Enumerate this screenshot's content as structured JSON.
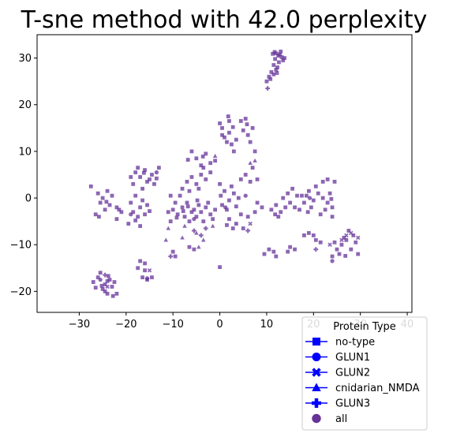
{
  "chart_data": {
    "type": "scatter",
    "title": "T-sne method with 42.0 perplexity",
    "xlabel": "",
    "ylabel": "",
    "xlim": [
      -39,
      41
    ],
    "ylim": [
      -24.5,
      35
    ],
    "xticks": [
      -30,
      -20,
      -10,
      0,
      10,
      20,
      30,
      40
    ],
    "yticks": [
      -20,
      -10,
      0,
      10,
      20,
      30
    ],
    "xtick_labels": [
      "−30",
      "−20",
      "−10",
      "0",
      "10",
      "20",
      "30",
      "40"
    ],
    "ytick_labels": [
      "−20",
      "−10",
      "0",
      "10",
      "20",
      "30"
    ],
    "grid": false,
    "point_color": "#663399",
    "legend_marker_color": "#0000ff",
    "legend": {
      "title": "Protein Type",
      "placement": "lower-right",
      "entries": [
        {
          "label": "no-type",
          "marker": "square"
        },
        {
          "label": "GLUN1",
          "marker": "circle"
        },
        {
          "label": "GLUN2",
          "marker": "x"
        },
        {
          "label": "cnidarian_NMDA",
          "marker": "triangle"
        },
        {
          "label": "GLUN3",
          "marker": "plus"
        },
        {
          "label": "all",
          "marker": "circle-filled"
        }
      ]
    },
    "series": [
      {
        "name": "no-type",
        "marker": "square",
        "points": [
          [
            12.0,
            31.0
          ],
          [
            12.5,
            30.5
          ],
          [
            11.8,
            29.8
          ],
          [
            12.8,
            30.8
          ],
          [
            13.2,
            30.2
          ],
          [
            11.5,
            28.5
          ],
          [
            12.3,
            28.0
          ],
          [
            13.5,
            29.5
          ],
          [
            11.0,
            27.0
          ],
          [
            12.0,
            27.5
          ],
          [
            10.5,
            26.0
          ],
          [
            11.5,
            26.5
          ],
          [
            10.0,
            25.0
          ],
          [
            13.0,
            31.4
          ],
          [
            11.3,
            30.9
          ],
          [
            12.6,
            29.1
          ],
          [
            11.7,
            31.3
          ],
          [
            13.8,
            30.0
          ],
          [
            10.8,
            25.5
          ],
          [
            12.2,
            26.8
          ],
          [
            -23.5,
            -17.5
          ],
          [
            -24.5,
            -18.5
          ],
          [
            -25.0,
            -19.5
          ],
          [
            -22.5,
            -18.0
          ],
          [
            -24.0,
            -20.5
          ],
          [
            -26.0,
            -17.0
          ],
          [
            -23.0,
            -19.0
          ],
          [
            -25.5,
            -16.0
          ],
          [
            -27.0,
            -18.0
          ],
          [
            -24.5,
            -20.0
          ],
          [
            -22.0,
            -20.5
          ],
          [
            -25.2,
            -18.8
          ],
          [
            -23.8,
            -16.7
          ],
          [
            -26.5,
            -19.2
          ],
          [
            -22.8,
            -21.0
          ],
          [
            -24.0,
            -17.8
          ],
          [
            -18.0,
            5.5
          ],
          [
            -17.0,
            4.5
          ],
          [
            -16.0,
            6.0
          ],
          [
            -15.5,
            3.5
          ],
          [
            -14.5,
            5.0
          ],
          [
            -13.0,
            6.5
          ],
          [
            -18.5,
            3.0
          ],
          [
            -16.5,
            2.0
          ],
          [
            -15.0,
            4.0
          ],
          [
            -17.5,
            6.5
          ],
          [
            -19.0,
            4.5
          ],
          [
            -14.0,
            3.0
          ],
          [
            -16.2,
            5.4
          ],
          [
            -13.5,
            4.2
          ],
          [
            -26.0,
            1.0
          ],
          [
            -25.0,
            0.0
          ],
          [
            -24.0,
            1.5
          ],
          [
            -23.0,
            0.5
          ],
          [
            -25.5,
            -1.0
          ],
          [
            -24.5,
            -2.5
          ],
          [
            -26.5,
            -3.5
          ],
          [
            -27.5,
            2.5
          ],
          [
            -24.2,
            -0.8
          ],
          [
            -25.8,
            -4.0
          ],
          [
            -23.5,
            -1.5
          ],
          [
            -22.0,
            -2.0
          ],
          [
            -21.0,
            -3.0
          ],
          [
            -22.0,
            -4.5
          ],
          [
            -21.5,
            -2.5
          ],
          [
            -19.0,
            -1.0
          ],
          [
            -18.0,
            0.5
          ],
          [
            -17.0,
            -2.0
          ],
          [
            -18.5,
            -3.0
          ],
          [
            -19.5,
            -5.5
          ],
          [
            -17.5,
            -4.0
          ],
          [
            -16.0,
            -3.5
          ],
          [
            -17.0,
            -6.0
          ],
          [
            -15.5,
            -1.5
          ],
          [
            -18.0,
            -4.8
          ],
          [
            -16.5,
            -0.5
          ],
          [
            -15.0,
            -2.8
          ],
          [
            -17.0,
            -13.5
          ],
          [
            -16.0,
            -14.0
          ],
          [
            -17.5,
            -15.0
          ],
          [
            -16.5,
            -17.0
          ],
          [
            -15.5,
            -17.5
          ],
          [
            -14.5,
            -17.0
          ],
          [
            -16.0,
            -15.5
          ],
          [
            -10.5,
            0.5
          ],
          [
            -9.5,
            -1.0
          ],
          [
            -10.0,
            -2.5
          ],
          [
            -9.0,
            -3.5
          ],
          [
            -11.0,
            -3.0
          ],
          [
            -10.5,
            -5.0
          ],
          [
            -8.0,
            -2.0
          ],
          [
            -7.0,
            -1.0
          ],
          [
            -8.5,
            0.5
          ],
          [
            -6.0,
            -3.0
          ],
          [
            -7.5,
            -4.0
          ],
          [
            -6.5,
            -5.0
          ],
          [
            -5.5,
            -2.5
          ],
          [
            -4.5,
            -1.5
          ],
          [
            -5.0,
            -4.0
          ],
          [
            -4.0,
            -3.0
          ],
          [
            -3.5,
            -5.0
          ],
          [
            -3.0,
            -2.0
          ],
          [
            -2.5,
            -1.0
          ],
          [
            -2.0,
            -3.5
          ],
          [
            -1.5,
            -4.5
          ],
          [
            -1.0,
            -2.5
          ],
          [
            -7.8,
            -2.8
          ],
          [
            -9.2,
            -4.2
          ],
          [
            -4.8,
            -0.5
          ],
          [
            -6.8,
            -1.8
          ],
          [
            -8.0,
            2.0
          ],
          [
            -7.0,
            3.5
          ],
          [
            -6.0,
            4.5
          ],
          [
            -5.0,
            3.0
          ],
          [
            -4.0,
            5.0
          ],
          [
            -3.0,
            4.0
          ],
          [
            -2.0,
            5.5
          ],
          [
            -6.5,
            1.5
          ],
          [
            -4.5,
            2.0
          ],
          [
            -3.5,
            6.5
          ],
          [
            -10.0,
            -11.5
          ],
          [
            -9.5,
            -12.5
          ],
          [
            -5.5,
            -11.0
          ],
          [
            -6.5,
            -10.5
          ],
          [
            0.0,
            -14.8
          ],
          [
            -6.0,
            10.0
          ],
          [
            -5.0,
            8.5
          ],
          [
            -4.0,
            7.0
          ],
          [
            -3.0,
            9.5
          ],
          [
            -2.0,
            7.5
          ],
          [
            -1.0,
            8.0
          ],
          [
            -6.8,
            8.2
          ],
          [
            -3.6,
            8.9
          ],
          [
            0.0,
            16.0
          ],
          [
            0.5,
            15.0
          ],
          [
            1.0,
            13.0
          ],
          [
            1.5,
            12.0
          ],
          [
            2.0,
            14.0
          ],
          [
            2.5,
            11.5
          ],
          [
            3.0,
            10.0
          ],
          [
            2.0,
            16.5
          ],
          [
            0.5,
            13.5
          ],
          [
            1.8,
            17.5
          ],
          [
            3.5,
            12.5
          ],
          [
            2.8,
            15.2
          ],
          [
            4.5,
            16.5
          ],
          [
            5.5,
            17.0
          ],
          [
            5.0,
            14.5
          ],
          [
            6.0,
            13.5
          ],
          [
            7.0,
            15.0
          ],
          [
            6.5,
            12.0
          ],
          [
            7.5,
            10.0
          ],
          [
            5.8,
            15.8
          ],
          [
            0.0,
            3.0
          ],
          [
            1.0,
            1.5
          ],
          [
            2.0,
            -0.5
          ],
          [
            0.5,
            -1.5
          ],
          [
            1.5,
            -2.5
          ],
          [
            3.0,
            1.0
          ],
          [
            4.0,
            0.0
          ],
          [
            2.5,
            2.5
          ],
          [
            0.2,
            0.5
          ],
          [
            3.5,
            -1.8
          ],
          [
            2.0,
            -4.5
          ],
          [
            3.5,
            -5.5
          ],
          [
            5.0,
            -6.5
          ],
          [
            4.5,
            -3.5
          ],
          [
            6.0,
            -4.0
          ],
          [
            2.8,
            -6.5
          ],
          [
            1.5,
            -5.8
          ],
          [
            6.5,
            3.5
          ],
          [
            5.5,
            5.0
          ],
          [
            7.0,
            6.5
          ],
          [
            4.5,
            4.0
          ],
          [
            8.0,
            4.0
          ],
          [
            8.0,
            -1.0
          ],
          [
            9.0,
            -2.0
          ],
          [
            7.5,
            -3.0
          ],
          [
            10.5,
            -11.0
          ],
          [
            11.5,
            -11.5
          ],
          [
            12.0,
            -12.5
          ],
          [
            9.5,
            -12.0
          ],
          [
            11.0,
            -2.5
          ],
          [
            12.0,
            -1.5
          ],
          [
            13.0,
            -3.0
          ],
          [
            14.0,
            -2.0
          ],
          [
            15.0,
            -1.0
          ],
          [
            16.0,
            -2.0
          ],
          [
            13.5,
            0.0
          ],
          [
            15.5,
            2.0
          ],
          [
            14.5,
            1.0
          ],
          [
            12.5,
            -4.0
          ],
          [
            16.5,
            0.5
          ],
          [
            11.8,
            -3.5
          ],
          [
            17.0,
            -2.5
          ],
          [
            18.0,
            -1.0
          ],
          [
            18.5,
            0.5
          ],
          [
            19.0,
            1.5
          ],
          [
            20.0,
            -0.5
          ],
          [
            19.5,
            -2.0
          ],
          [
            21.0,
            1.0
          ],
          [
            17.5,
            0.5
          ],
          [
            20.5,
            2.5
          ],
          [
            18.8,
            -3.0
          ],
          [
            15.0,
            -10.5
          ],
          [
            16.0,
            -11.0
          ],
          [
            14.5,
            -11.5
          ],
          [
            18.0,
            -8.0
          ],
          [
            19.0,
            -7.5
          ],
          [
            20.0,
            -8.0
          ],
          [
            20.5,
            -9.0
          ],
          [
            21.5,
            -9.5
          ],
          [
            22.0,
            0.0
          ],
          [
            23.0,
            -1.0
          ],
          [
            22.5,
            -2.5
          ],
          [
            24.0,
            -2.0
          ],
          [
            23.5,
            1.0
          ],
          [
            22.0,
            3.5
          ],
          [
            23.0,
            4.0
          ],
          [
            24.5,
            3.5
          ],
          [
            24.0,
            -4.0
          ],
          [
            21.5,
            -3.5
          ],
          [
            23.8,
            -0.2
          ],
          [
            24.5,
            -9.5
          ],
          [
            25.0,
            -11.0
          ],
          [
            24.0,
            -12.5
          ],
          [
            26.0,
            -10.0
          ],
          [
            25.5,
            -12.0
          ],
          [
            26.5,
            -8.5
          ],
          [
            27.5,
            -7.0
          ],
          [
            28.5,
            -8.0
          ],
          [
            29.0,
            -9.5
          ],
          [
            29.5,
            -12.0
          ],
          [
            28.0,
            -11.0
          ],
          [
            27.0,
            -9.0
          ],
          [
            26.8,
            -12.4
          ]
        ]
      },
      {
        "name": "GLUN1",
        "marker": "circle",
        "points": [
          [
            -15.5,
            -17.2
          ],
          [
            -25.5,
            -17.5
          ],
          [
            -13.5,
            5.5
          ],
          [
            -5.5,
            -4.5
          ],
          [
            1.2,
            -2.0
          ],
          [
            19.2,
            0.0
          ],
          [
            24.0,
            -13.5
          ],
          [
            -19.0,
            -3.5
          ],
          [
            5.5,
            0.5
          ]
        ]
      },
      {
        "name": "GLUN2",
        "marker": "x",
        "points": [
          [
            -24.0,
            -19.0
          ],
          [
            -15.0,
            -15.5
          ],
          [
            28.0,
            -7.5
          ],
          [
            27.0,
            -8.0
          ],
          [
            26.0,
            -9.0
          ],
          [
            29.5,
            -8.5
          ],
          [
            23.5,
            -10.0
          ],
          [
            6.5,
            -5.5
          ]
        ]
      },
      {
        "name": "cnidarian_NMDA",
        "marker": "triangle",
        "points": [
          [
            -1.0,
            9.0
          ],
          [
            6.5,
            7.5
          ],
          [
            -11.0,
            -6.5
          ],
          [
            -5.0,
            -7.5
          ],
          [
            -3.5,
            -9.0
          ],
          [
            -1.5,
            -6.0
          ],
          [
            -4.5,
            -10.5
          ],
          [
            7.5,
            8.0
          ],
          [
            -11.5,
            -9.0
          ],
          [
            -8.0,
            -8.5
          ],
          [
            -7.5,
            -6.0
          ]
        ]
      },
      {
        "name": "GLUN3",
        "marker": "plus",
        "points": [
          [
            -5.5,
            -7.0
          ],
          [
            -4.0,
            -8.0
          ],
          [
            -3.0,
            -6.5
          ],
          [
            6.0,
            -7.0
          ],
          [
            -24.5,
            -16.5
          ],
          [
            20.5,
            -11.0
          ],
          [
            10.2,
            23.5
          ],
          [
            -10.5,
            -12.5
          ]
        ]
      }
    ]
  }
}
